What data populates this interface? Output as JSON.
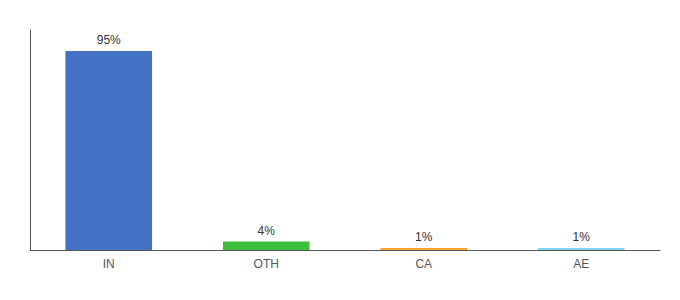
{
  "chart_data": {
    "type": "bar",
    "categories": [
      "IN",
      "OTH",
      "CA",
      "AE"
    ],
    "values": [
      95,
      4,
      1,
      1
    ],
    "value_labels": [
      "95%",
      "4%",
      "1%",
      "1%"
    ],
    "colors": [
      "#4472C4",
      "#3DBE3D",
      "#FFA726",
      "#81D4FA"
    ],
    "ylim": [
      0,
      105
    ],
    "data_labels": true,
    "tick_labels": "x",
    "grid": false
  }
}
